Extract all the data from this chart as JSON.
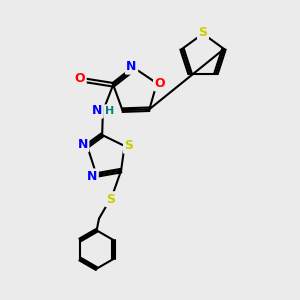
{
  "background_color": "#ebebeb",
  "atom_colors": {
    "C": "#000000",
    "N": "#0000ff",
    "O": "#ff0000",
    "S": "#cccc00",
    "H": "#008080"
  },
  "bond_lw": 1.5,
  "figsize": [
    3.0,
    3.0
  ],
  "dpi": 100,
  "xlim": [
    0,
    10
  ],
  "ylim": [
    0,
    10
  ]
}
